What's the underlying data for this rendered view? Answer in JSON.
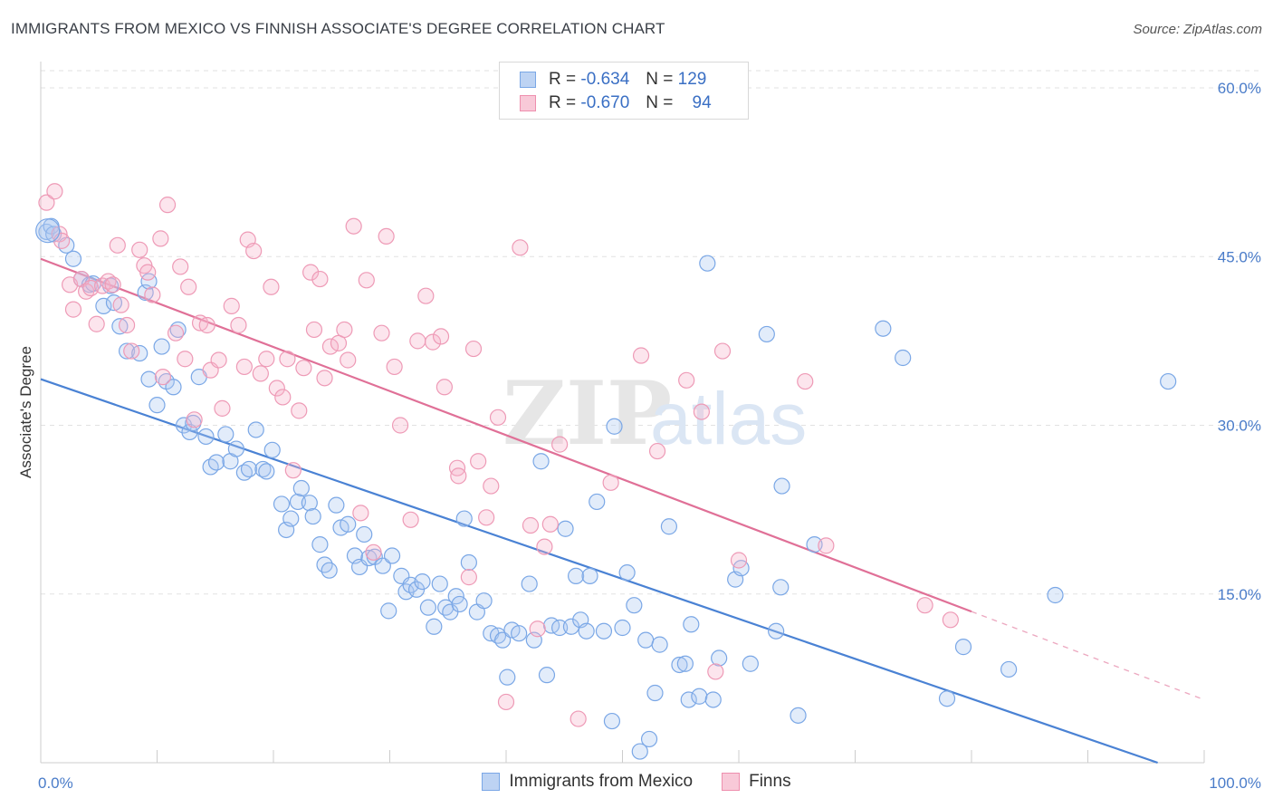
{
  "title": "IMMIGRANTS FROM MEXICO VS FINNISH ASSOCIATE'S DEGREE CORRELATION CHART",
  "source": "Source: ZipAtlas.com",
  "watermark": {
    "zip": "ZIP",
    "atlas": "atlas"
  },
  "legend": {
    "r_label": "R =",
    "n_label": "N =",
    "rows": [
      {
        "r": "-0.634",
        "n": "129",
        "color": "#7aa7e6",
        "fill": "#bdd3f3"
      },
      {
        "r": "-0.670",
        "n": "94",
        "color": "#ee8fae",
        "fill": "#f8c9d8"
      }
    ]
  },
  "bottom_legend": [
    "Immigrants from Mexico",
    "Finns"
  ],
  "chart_data": {
    "type": "scatter",
    "ylabel": "Associate's Degree",
    "xlabel": "",
    "x_range": [
      0,
      100
    ],
    "y_range": [
      0,
      60
    ],
    "x_tick_labels": [
      {
        "value": 0,
        "label": "0.0%"
      },
      {
        "value": 100,
        "label": "100.0%"
      }
    ],
    "y_tick_labels": [
      {
        "value": 15,
        "label": "15.0%"
      },
      {
        "value": 30,
        "label": "30.0%"
      },
      {
        "value": 45,
        "label": "45.0%"
      },
      {
        "value": 60,
        "label": "60.0%"
      }
    ],
    "grid": true,
    "series": [
      {
        "name": "Immigrants from Mexico",
        "color": "#4a82d4",
        "trend": {
          "x0": 0,
          "y0": 34.1,
          "x1": 96,
          "y1": 0,
          "solid_until": 96
        },
        "points": [
          [
            0.5,
            47.2
          ],
          [
            0.9,
            47.7
          ],
          [
            1.1,
            47.0
          ],
          [
            2.2,
            46.0
          ],
          [
            2.8,
            44.8
          ],
          [
            3.5,
            43.0
          ],
          [
            4.2,
            42.5
          ],
          [
            4.5,
            42.6
          ],
          [
            5.4,
            40.6
          ],
          [
            6.0,
            42.4
          ],
          [
            6.3,
            40.9
          ],
          [
            6.8,
            38.8
          ],
          [
            7.4,
            36.6
          ],
          [
            8.5,
            36.4
          ],
          [
            9.0,
            41.8
          ],
          [
            9.3,
            42.8
          ],
          [
            9.3,
            34.1
          ],
          [
            10.0,
            31.8
          ],
          [
            10.4,
            37.0
          ],
          [
            10.8,
            33.9
          ],
          [
            11.4,
            33.4
          ],
          [
            11.8,
            38.5
          ],
          [
            12.3,
            30.0
          ],
          [
            12.8,
            29.4
          ],
          [
            13.1,
            30.2
          ],
          [
            13.6,
            34.3
          ],
          [
            14.2,
            29.0
          ],
          [
            14.6,
            26.3
          ],
          [
            15.1,
            26.7
          ],
          [
            15.9,
            29.2
          ],
          [
            16.3,
            26.8
          ],
          [
            16.8,
            27.9
          ],
          [
            17.5,
            25.8
          ],
          [
            17.9,
            26.1
          ],
          [
            18.5,
            29.6
          ],
          [
            19.1,
            26.1
          ],
          [
            19.4,
            25.9
          ],
          [
            19.9,
            27.8
          ],
          [
            20.7,
            23.0
          ],
          [
            21.1,
            20.7
          ],
          [
            21.5,
            21.7
          ],
          [
            22.1,
            23.2
          ],
          [
            22.4,
            24.4
          ],
          [
            23.1,
            23.1
          ],
          [
            23.4,
            21.9
          ],
          [
            24.0,
            19.4
          ],
          [
            24.4,
            17.6
          ],
          [
            24.8,
            17.1
          ],
          [
            25.4,
            22.9
          ],
          [
            25.8,
            20.9
          ],
          [
            26.4,
            21.2
          ],
          [
            27.0,
            18.4
          ],
          [
            27.4,
            17.4
          ],
          [
            27.8,
            20.3
          ],
          [
            28.2,
            18.2
          ],
          [
            28.7,
            18.3
          ],
          [
            29.4,
            17.5
          ],
          [
            29.9,
            13.5
          ],
          [
            30.2,
            18.4
          ],
          [
            31.0,
            16.6
          ],
          [
            31.4,
            15.2
          ],
          [
            31.8,
            15.8
          ],
          [
            32.3,
            15.4
          ],
          [
            32.8,
            16.1
          ],
          [
            33.3,
            13.8
          ],
          [
            33.8,
            12.1
          ],
          [
            34.3,
            15.9
          ],
          [
            34.8,
            13.8
          ],
          [
            35.2,
            13.4
          ],
          [
            35.7,
            14.8
          ],
          [
            36.0,
            14.1
          ],
          [
            36.4,
            21.7
          ],
          [
            36.8,
            17.8
          ],
          [
            37.5,
            13.4
          ],
          [
            38.1,
            14.4
          ],
          [
            38.7,
            11.5
          ],
          [
            39.3,
            11.3
          ],
          [
            39.7,
            10.9
          ],
          [
            40.1,
            7.6
          ],
          [
            40.5,
            11.8
          ],
          [
            41.1,
            11.5
          ],
          [
            42.0,
            15.9
          ],
          [
            42.4,
            10.9
          ],
          [
            43.0,
            26.8
          ],
          [
            43.5,
            7.8
          ],
          [
            43.9,
            12.2
          ],
          [
            44.6,
            12.0
          ],
          [
            45.1,
            20.8
          ],
          [
            45.6,
            12.1
          ],
          [
            46.0,
            16.6
          ],
          [
            46.4,
            12.7
          ],
          [
            46.9,
            11.7
          ],
          [
            47.2,
            16.6
          ],
          [
            47.8,
            23.2
          ],
          [
            48.4,
            11.7
          ],
          [
            49.1,
            3.7
          ],
          [
            49.3,
            29.9
          ],
          [
            50.0,
            12.0
          ],
          [
            50.4,
            16.9
          ],
          [
            51.0,
            14.0
          ],
          [
            51.5,
            1.0
          ],
          [
            52.0,
            10.9
          ],
          [
            52.3,
            2.1
          ],
          [
            52.8,
            6.2
          ],
          [
            53.2,
            10.5
          ],
          [
            54.0,
            21.0
          ],
          [
            54.9,
            8.7
          ],
          [
            55.4,
            8.8
          ],
          [
            55.7,
            5.6
          ],
          [
            55.9,
            12.3
          ],
          [
            56.6,
            5.9
          ],
          [
            57.3,
            44.4
          ],
          [
            57.8,
            5.6
          ],
          [
            58.3,
            9.3
          ],
          [
            59.7,
            16.3
          ],
          [
            60.2,
            17.3
          ],
          [
            61.0,
            8.8
          ],
          [
            62.4,
            38.1
          ],
          [
            63.2,
            11.7
          ],
          [
            63.6,
            15.6
          ],
          [
            63.7,
            24.6
          ],
          [
            65.1,
            4.2
          ],
          [
            66.5,
            19.4
          ],
          [
            72.4,
            38.6
          ],
          [
            74.1,
            36.0
          ],
          [
            77.9,
            5.7
          ],
          [
            79.3,
            10.3
          ],
          [
            83.2,
            8.3
          ],
          [
            87.2,
            14.9
          ],
          [
            96.9,
            33.9
          ]
        ]
      },
      {
        "name": "Finns",
        "color": "#e07097",
        "trend": {
          "x0": 0,
          "y0": 44.8,
          "x1": 100,
          "y1": 5.6,
          "solid_until": 80
        },
        "points": [
          [
            0.5,
            49.8
          ],
          [
            1.2,
            50.8
          ],
          [
            1.6,
            47.0
          ],
          [
            1.8,
            46.4
          ],
          [
            2.5,
            42.5
          ],
          [
            2.8,
            40.3
          ],
          [
            3.5,
            43.0
          ],
          [
            3.9,
            41.9
          ],
          [
            4.3,
            42.2
          ],
          [
            4.8,
            39.0
          ],
          [
            5.3,
            42.4
          ],
          [
            5.8,
            42.8
          ],
          [
            6.2,
            42.5
          ],
          [
            6.6,
            46.0
          ],
          [
            6.9,
            40.7
          ],
          [
            7.4,
            38.9
          ],
          [
            7.8,
            36.6
          ],
          [
            8.5,
            45.6
          ],
          [
            8.9,
            44.2
          ],
          [
            9.2,
            43.6
          ],
          [
            9.6,
            41.6
          ],
          [
            10.3,
            46.6
          ],
          [
            10.5,
            34.3
          ],
          [
            10.9,
            49.6
          ],
          [
            11.6,
            38.2
          ],
          [
            12.0,
            44.1
          ],
          [
            12.4,
            35.9
          ],
          [
            12.7,
            42.3
          ],
          [
            13.2,
            30.5
          ],
          [
            13.7,
            39.1
          ],
          [
            14.3,
            38.9
          ],
          [
            14.6,
            34.9
          ],
          [
            15.3,
            35.8
          ],
          [
            15.6,
            31.5
          ],
          [
            16.4,
            40.6
          ],
          [
            17.0,
            38.9
          ],
          [
            17.5,
            35.2
          ],
          [
            17.8,
            46.5
          ],
          [
            18.3,
            45.5
          ],
          [
            18.9,
            34.6
          ],
          [
            19.4,
            35.9
          ],
          [
            19.8,
            42.3
          ],
          [
            20.3,
            33.3
          ],
          [
            20.8,
            32.5
          ],
          [
            21.2,
            35.9
          ],
          [
            21.7,
            26.0
          ],
          [
            22.2,
            31.3
          ],
          [
            22.6,
            35.1
          ],
          [
            23.2,
            43.6
          ],
          [
            23.5,
            38.5
          ],
          [
            24.0,
            43.0
          ],
          [
            24.4,
            34.2
          ],
          [
            24.9,
            37.0
          ],
          [
            25.6,
            37.3
          ],
          [
            26.1,
            38.5
          ],
          [
            26.4,
            35.8
          ],
          [
            26.9,
            47.7
          ],
          [
            27.5,
            22.2
          ],
          [
            28.0,
            42.9
          ],
          [
            28.6,
            18.7
          ],
          [
            29.3,
            38.2
          ],
          [
            29.7,
            46.8
          ],
          [
            30.4,
            35.2
          ],
          [
            30.9,
            30.0
          ],
          [
            31.8,
            21.6
          ],
          [
            32.4,
            37.5
          ],
          [
            33.1,
            41.5
          ],
          [
            33.7,
            37.4
          ],
          [
            34.4,
            37.9
          ],
          [
            34.7,
            33.4
          ],
          [
            35.8,
            26.2
          ],
          [
            35.9,
            25.5
          ],
          [
            36.8,
            16.5
          ],
          [
            37.2,
            36.8
          ],
          [
            37.6,
            26.8
          ],
          [
            38.3,
            21.8
          ],
          [
            38.7,
            24.6
          ],
          [
            39.3,
            30.7
          ],
          [
            40.0,
            5.4
          ],
          [
            41.2,
            45.8
          ],
          [
            42.1,
            21.1
          ],
          [
            42.7,
            11.9
          ],
          [
            43.3,
            19.2
          ],
          [
            43.8,
            21.2
          ],
          [
            44.6,
            28.3
          ],
          [
            46.2,
            3.9
          ],
          [
            49.0,
            24.9
          ],
          [
            51.6,
            36.2
          ],
          [
            53.0,
            27.7
          ],
          [
            55.5,
            34.0
          ],
          [
            56.8,
            31.2
          ],
          [
            58.0,
            8.1
          ],
          [
            58.6,
            36.6
          ],
          [
            60.0,
            18.0
          ],
          [
            65.7,
            33.9
          ],
          [
            67.5,
            19.3
          ],
          [
            76.0,
            14.0
          ],
          [
            78.2,
            12.7
          ]
        ]
      }
    ]
  }
}
